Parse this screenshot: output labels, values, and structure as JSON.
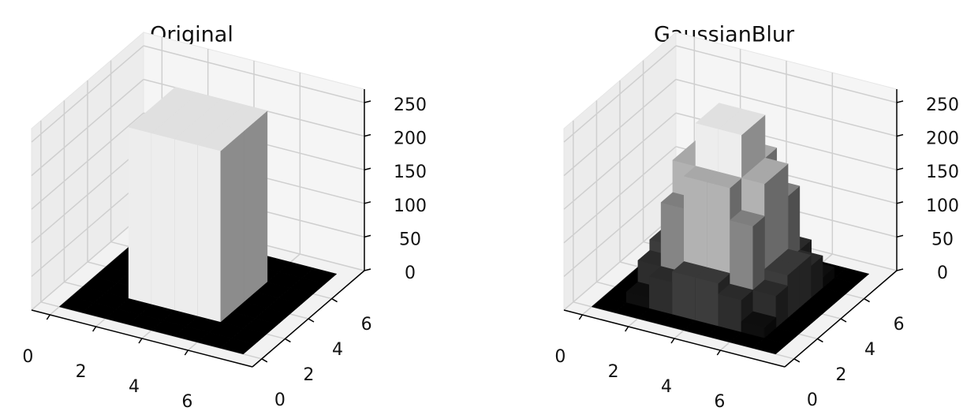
{
  "chart_data": [
    {
      "type": "bar3d",
      "title": "Original",
      "grid": true,
      "xlim": [
        -0.8,
        8.8
      ],
      "ylim": [
        -0.8,
        8.8
      ],
      "zlim": [
        0,
        270
      ],
      "xticks": [
        0,
        2,
        4,
        6
      ],
      "yticks": [
        0,
        2,
        4,
        6
      ],
      "zticks": [
        0,
        50,
        100,
        150,
        200,
        250
      ],
      "values": [
        [
          0,
          0,
          0,
          0,
          0,
          0,
          0,
          0
        ],
        [
          0,
          0,
          0,
          0,
          0,
          0,
          0,
          0
        ],
        [
          0,
          0,
          255,
          255,
          255,
          255,
          0,
          0
        ],
        [
          0,
          0,
          255,
          255,
          255,
          255,
          0,
          0
        ],
        [
          0,
          0,
          255,
          255,
          255,
          255,
          0,
          0
        ],
        [
          0,
          0,
          255,
          255,
          255,
          255,
          0,
          0
        ],
        [
          0,
          0,
          0,
          0,
          0,
          0,
          0,
          0
        ],
        [
          0,
          0,
          0,
          0,
          0,
          0,
          0,
          0
        ]
      ]
    },
    {
      "type": "bar3d",
      "title": "GaussianBlur",
      "grid": true,
      "xlim": [
        -0.8,
        8.8
      ],
      "ylim": [
        -0.8,
        8.8
      ],
      "zlim": [
        0,
        270
      ],
      "xticks": [
        0,
        2,
        4,
        6
      ],
      "yticks": [
        0,
        2,
        4,
        6
      ],
      "zticks": [
        0,
        50,
        100,
        150,
        200,
        250
      ],
      "values": [
        [
          0,
          0,
          0,
          0,
          0,
          0,
          0,
          0
        ],
        [
          0,
          16,
          48,
          64,
          64,
          48,
          16,
          0
        ],
        [
          0,
          48,
          143,
          191,
          191,
          143,
          48,
          0
        ],
        [
          0,
          64,
          191,
          255,
          255,
          191,
          64,
          0
        ],
        [
          0,
          64,
          191,
          255,
          255,
          191,
          64,
          0
        ],
        [
          0,
          48,
          143,
          191,
          191,
          143,
          48,
          0
        ],
        [
          0,
          16,
          48,
          64,
          64,
          48,
          16,
          0
        ],
        [
          0,
          0,
          0,
          0,
          0,
          0,
          0,
          0
        ]
      ]
    }
  ]
}
